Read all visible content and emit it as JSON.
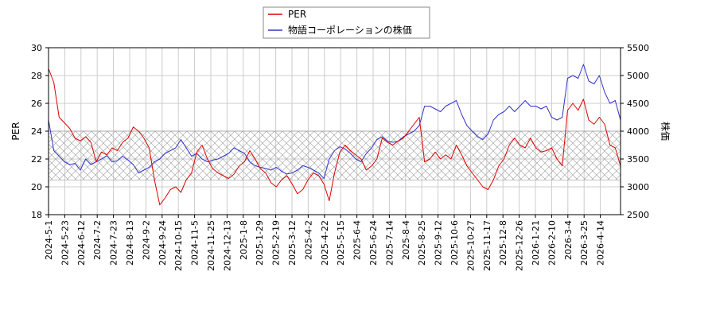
{
  "chart_data": {
    "type": "line",
    "legend": {
      "placement": "top-center",
      "entries": [
        {
          "name": "PER",
          "color": "#dd0000"
        },
        {
          "name": "物語コーポレーションの株価",
          "color": "#3333cc"
        }
      ]
    },
    "y_left": {
      "label": "PER",
      "range": [
        18,
        30
      ],
      "ticks": [
        "18",
        "20",
        "22",
        "24",
        "26",
        "28",
        "30"
      ]
    },
    "y_right": {
      "label": "株価",
      "range": [
        2500,
        5500
      ],
      "ticks": [
        "2500",
        "3000",
        "3500",
        "4000",
        "4500",
        "5000",
        "5500"
      ]
    },
    "x_ticks": [
      "2024-5-1",
      "2024-5-23",
      "2024-6-12",
      "2024-7-2",
      "2024-7-23",
      "2024-8-13",
      "2024-9-2",
      "2024-9-24",
      "2024-10-15",
      "2024-11-5",
      "2024-11-25",
      "2024-12-13",
      "2025-1-8",
      "2025-1-29",
      "2025-2-19",
      "2025-3-12",
      "2025-4-2",
      "2025-4-22",
      "2025-5-15",
      "2025-6-4",
      "2025-6-24",
      "2025-7-14",
      "2025-8-4",
      "2025-8-25",
      "2025-9-12",
      "2025-10-6",
      "2025-10-27",
      "2025-11-17",
      "2025-12-8",
      "2025-12-26",
      "2026-1-21",
      "2026-2-10",
      "2026-3-4",
      "2026-3-25",
      "2026-4-14"
    ],
    "band": {
      "axis": "left",
      "from": 20.5,
      "to": 24.0,
      "pattern": "crosshatch"
    },
    "grid": true,
    "series": [
      {
        "name": "PER",
        "axis": "left",
        "color": "#dd0000",
        "values": [
          28.5,
          27.5,
          25,
          24.6,
          24.2,
          23.5,
          23.3,
          23.6,
          23.2,
          21.8,
          22.5,
          22.3,
          22.8,
          22.6,
          23.2,
          23.5,
          24.3,
          24.0,
          23.5,
          22.8,
          20.5,
          18.7,
          19.2,
          19.8,
          20.0,
          19.6,
          20.5,
          21.0,
          22.5,
          23.0,
          22.0,
          21.3,
          21.0,
          20.8,
          20.6,
          20.9,
          21.5,
          21.8,
          22.6,
          22.0,
          21.3,
          21.0,
          20.3,
          20.0,
          20.5,
          20.8,
          20.2,
          19.5,
          19.8,
          20.5,
          21.0,
          20.8,
          20.2,
          19.0,
          21.0,
          22.5,
          23.0,
          22.6,
          22.3,
          22.0,
          21.2,
          21.5,
          22.0,
          23.5,
          23.2,
          23.0,
          23.3,
          23.5,
          24.0,
          24.5,
          25.0,
          21.8,
          22.0,
          22.5,
          22.0,
          22.3,
          22.0,
          23.0,
          22.3,
          21.5,
          21.0,
          20.5,
          20.0,
          19.8,
          20.5,
          21.5,
          22.0,
          23.0,
          23.5,
          23.0,
          22.8,
          23.5,
          22.8,
          22.5,
          22.6,
          22.8,
          22.0,
          21.5,
          25.5,
          26.0,
          25.5,
          26.3,
          24.8,
          24.5,
          25.0,
          24.5,
          23.0,
          22.8,
          21.5
        ]
      },
      {
        "name": "物語コーポレーションの株価",
        "axis": "right",
        "color": "#3333cc",
        "values": [
          4200,
          3650,
          3550,
          3450,
          3400,
          3420,
          3300,
          3500,
          3400,
          3450,
          3500,
          3560,
          3450,
          3470,
          3550,
          3480,
          3400,
          3250,
          3300,
          3350,
          3450,
          3500,
          3600,
          3650,
          3700,
          3850,
          3700,
          3550,
          3600,
          3500,
          3450,
          3480,
          3500,
          3550,
          3600,
          3700,
          3650,
          3600,
          3450,
          3380,
          3350,
          3330,
          3300,
          3350,
          3280,
          3230,
          3250,
          3300,
          3380,
          3350,
          3300,
          3250,
          3150,
          3500,
          3650,
          3720,
          3680,
          3600,
          3500,
          3450,
          3600,
          3700,
          3850,
          3900,
          3820,
          3800,
          3820,
          3900,
          3950,
          4000,
          4100,
          4450,
          4450,
          4400,
          4350,
          4450,
          4500,
          4550,
          4300,
          4100,
          4000,
          3900,
          3850,
          3950,
          4200,
          4300,
          4350,
          4450,
          4350,
          4450,
          4550,
          4450,
          4450,
          4400,
          4450,
          4250,
          4200,
          4250,
          4950,
          5000,
          4950,
          5200,
          4900,
          4850,
          5000,
          4700,
          4500,
          4550,
          4200
        ]
      }
    ]
  }
}
